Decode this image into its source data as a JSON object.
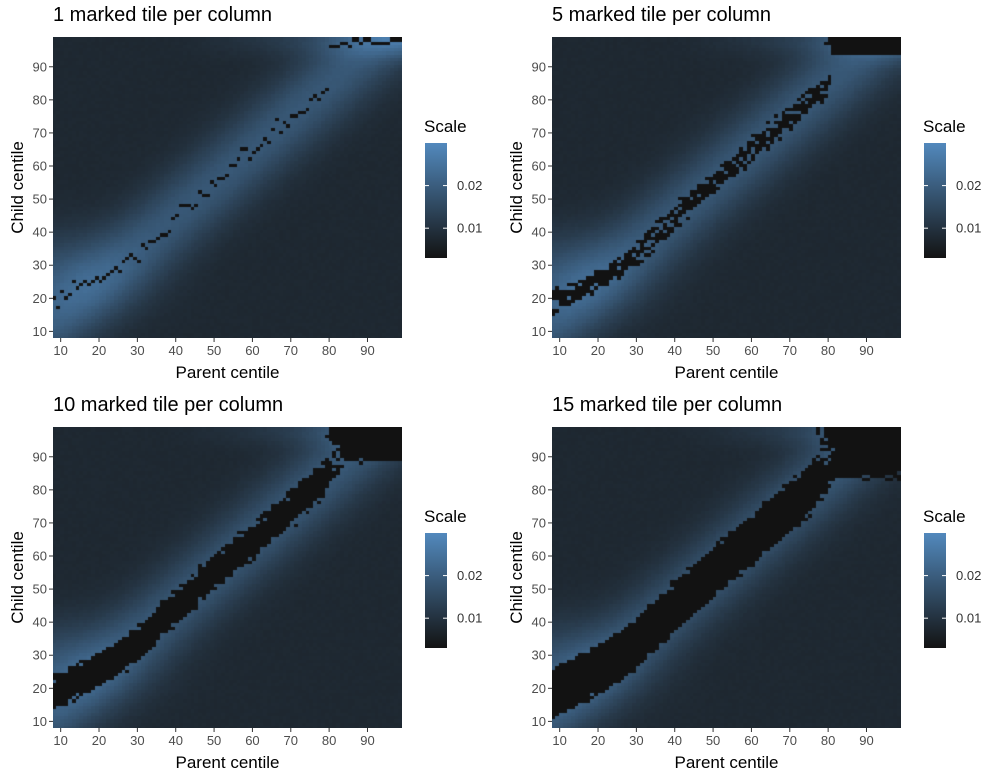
{
  "chart_data": [
    {
      "type": "heatmap",
      "title": "1 marked tile per column",
      "xlabel": "Parent centile",
      "ylabel": "Child centile",
      "xlim": [
        8,
        99
      ],
      "ylim": [
        8,
        99
      ],
      "x_ticks": [
        10,
        20,
        30,
        40,
        50,
        60,
        70,
        80,
        90
      ],
      "y_ticks": [
        10,
        20,
        30,
        40,
        50,
        60,
        70,
        80,
        90
      ],
      "marked_tiles_per_column": 1,
      "legend": {
        "title": "Scale",
        "ticks": [
          0.01,
          0.02
        ],
        "range": [
          0.003,
          0.03
        ],
        "position": "right"
      },
      "colors": {
        "low": "#131313",
        "high": "#5289bd"
      },
      "grid": false
    },
    {
      "type": "heatmap",
      "title": "5 marked tile per column",
      "xlabel": "Parent centile",
      "ylabel": "Child centile",
      "xlim": [
        8,
        99
      ],
      "ylim": [
        8,
        99
      ],
      "x_ticks": [
        10,
        20,
        30,
        40,
        50,
        60,
        70,
        80,
        90
      ],
      "y_ticks": [
        10,
        20,
        30,
        40,
        50,
        60,
        70,
        80,
        90
      ],
      "marked_tiles_per_column": 5,
      "legend": {
        "title": "Scale",
        "ticks": [
          0.01,
          0.02
        ],
        "range": [
          0.003,
          0.03
        ],
        "position": "right"
      },
      "colors": {
        "low": "#131313",
        "high": "#5289bd"
      },
      "grid": false
    },
    {
      "type": "heatmap",
      "title": "10 marked tile per column",
      "xlabel": "Parent centile",
      "ylabel": "Child centile",
      "xlim": [
        8,
        99
      ],
      "ylim": [
        8,
        99
      ],
      "x_ticks": [
        10,
        20,
        30,
        40,
        50,
        60,
        70,
        80,
        90
      ],
      "y_ticks": [
        10,
        20,
        30,
        40,
        50,
        60,
        70,
        80,
        90
      ],
      "marked_tiles_per_column": 10,
      "legend": {
        "title": "Scale",
        "ticks": [
          0.01,
          0.02
        ],
        "range": [
          0.003,
          0.03
        ],
        "position": "right"
      },
      "colors": {
        "low": "#131313",
        "high": "#5289bd"
      },
      "grid": false
    },
    {
      "type": "heatmap",
      "title": "15 marked tile per column",
      "xlabel": "Parent centile",
      "ylabel": "Child centile",
      "xlim": [
        8,
        99
      ],
      "ylim": [
        8,
        99
      ],
      "x_ticks": [
        10,
        20,
        30,
        40,
        50,
        60,
        70,
        80,
        90
      ],
      "y_ticks": [
        10,
        20,
        30,
        40,
        50,
        60,
        70,
        80,
        90
      ],
      "marked_tiles_per_column": 15,
      "legend": {
        "title": "Scale",
        "ticks": [
          0.01,
          0.02
        ],
        "range": [
          0.003,
          0.03
        ],
        "position": "right"
      },
      "colors": {
        "low": "#131313",
        "high": "#5289bd"
      },
      "grid": false
    }
  ]
}
